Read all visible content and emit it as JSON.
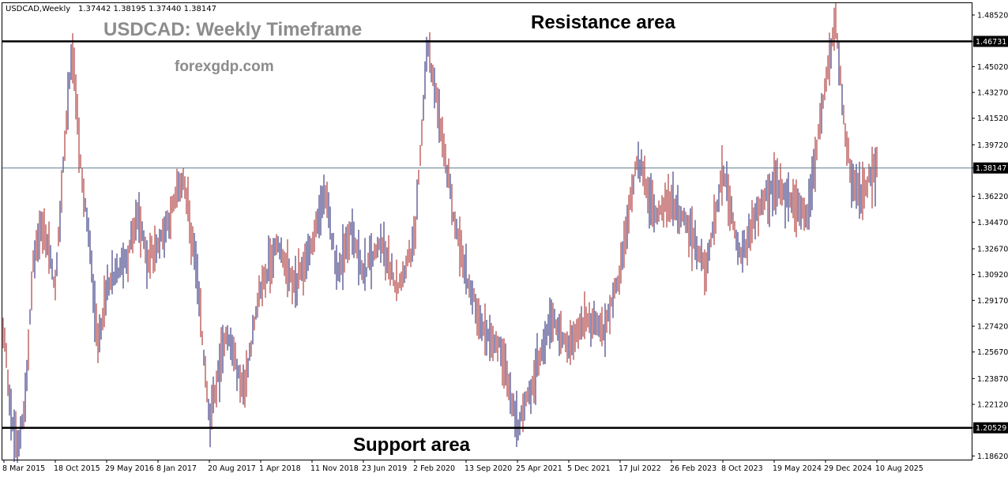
{
  "header": {
    "symbol": "USDCAD,Weekly",
    "ohlc": "1.37442 1.38195 1.37440 1.38147"
  },
  "title": "USDCAD: Weekly Timeframe",
  "watermark": "forexgdp.com",
  "annotations": {
    "resistance_label": "Resistance area",
    "support_label": "Support area"
  },
  "colors": {
    "bar": "#a01818",
    "bar_alt": "#1a1a6e",
    "level_line": "#000000",
    "current_line": "#5f7a8a",
    "tag_bg": "#000000"
  },
  "chart_data": {
    "type": "ohlc",
    "symbol": "USDCAD",
    "timeframe": "Weekly",
    "ylim": [
      1.1845,
      1.4942
    ],
    "y_ticks": [
      "1.48520",
      "1.46731",
      "1.45020",
      "1.43270",
      "1.41520",
      "1.39720",
      "1.38147",
      "1.36220",
      "1.34470",
      "1.32670",
      "1.30920",
      "1.29170",
      "1.27420",
      "1.25670",
      "1.23870",
      "1.22120",
      "1.20529",
      "1.18620"
    ],
    "x_ticks": [
      "8 Mar 2015",
      "18 Oct 2015",
      "29 May 2016",
      "8 Jan 2017",
      "20 Aug 2017",
      "1 Apr 2018",
      "11 Nov 2018",
      "23 Jun 2019",
      "2 Feb 2020",
      "13 Sep 2020",
      "25 Apr 2021",
      "5 Dec 2021",
      "17 Jul 2022",
      "26 Feb 2023",
      "8 Oct 2023",
      "19 May 2024",
      "29 Dec 2024",
      "10 Aug 2025"
    ],
    "levels": {
      "resistance": 1.46731,
      "support": 1.20529,
      "current": 1.38147
    },
    "price_path": [
      [
        "8 Mar 2015",
        1.27
      ],
      [
        "Apr 2015",
        1.21
      ],
      [
        "May 2015",
        1.19
      ],
      [
        "Jun 2015",
        1.23
      ],
      [
        "Aug 2015",
        1.32
      ],
      [
        "Sep 2015",
        1.34
      ],
      [
        "Sep 2015",
        1.33
      ],
      [
        "18 Oct 2015",
        1.3
      ],
      [
        "Dec 2015",
        1.39
      ],
      [
        "Jan 2016",
        1.465
      ],
      [
        "Feb 2016",
        1.38
      ],
      [
        "Mar 2016",
        1.33
      ],
      [
        "Apr 2016",
        1.26
      ],
      [
        "29 May 2016",
        1.3
      ],
      [
        "Jul 2016",
        1.31
      ],
      [
        "Sep 2016",
        1.32
      ],
      [
        "Nov 2016",
        1.35
      ],
      [
        "Dec 2016",
        1.32
      ],
      [
        "8 Jan 2017",
        1.33
      ],
      [
        "Mar 2017",
        1.35
      ],
      [
        "Apr 2017",
        1.375
      ],
      [
        "Jun 2017",
        1.31
      ],
      [
        "20 Aug 2017",
        1.21
      ],
      [
        "Oct 2017",
        1.27
      ],
      [
        "Dec 2017",
        1.23
      ],
      [
        "1 Apr 2018",
        1.3
      ],
      [
        "Jun 2018",
        1.33
      ],
      [
        "Aug 2018",
        1.3
      ],
      [
        "11 Nov 2018",
        1.33
      ],
      [
        "Dec 2018",
        1.365
      ],
      [
        "Feb 2019",
        1.31
      ],
      [
        "Apr 2019",
        1.34
      ],
      [
        "23 Jun 2019",
        1.31
      ],
      [
        "Sep 2019",
        1.33
      ],
      [
        "Nov 2019",
        1.3
      ],
      [
        "2 Feb 2020",
        1.33
      ],
      [
        "Mar 2020",
        1.465
      ],
      [
        "May 2020",
        1.41
      ],
      [
        "Jul 2020",
        1.35
      ],
      [
        "13 Sep 2020",
        1.31
      ],
      [
        "Nov 2020",
        1.27
      ],
      [
        "Jan 2021",
        1.26
      ],
      [
        "25 Apr 2021",
        1.205
      ],
      [
        "Jun 2021",
        1.24
      ],
      [
        "Aug 2021",
        1.28
      ],
      [
        "5 Dec 2021",
        1.26
      ],
      [
        "Feb 2022",
        1.28
      ],
      [
        "Apr 2022",
        1.27
      ],
      [
        "17 Jul 2022",
        1.31
      ],
      [
        "Oct 2022",
        1.39
      ],
      [
        "Dec 2022",
        1.35
      ],
      [
        "26 Feb 2023",
        1.36
      ],
      [
        "Apr 2023",
        1.34
      ],
      [
        "Jun 2023",
        1.31
      ],
      [
        "8 Oct 2023",
        1.38
      ],
      [
        "Dec 2023",
        1.32
      ],
      [
        "Mar 2024",
        1.35
      ],
      [
        "19 May 2024",
        1.37
      ],
      [
        "Jul 2024",
        1.36
      ],
      [
        "Sep 2024",
        1.35
      ],
      [
        "29 Dec 2024",
        1.44
      ],
      [
        "Feb 2025",
        1.477
      ],
      [
        "Apr 2025",
        1.4
      ],
      [
        "Jun 2025",
        1.36
      ],
      [
        "Jul 2025",
        1.37
      ],
      [
        "10 Aug 2025",
        1.38147
      ]
    ]
  }
}
